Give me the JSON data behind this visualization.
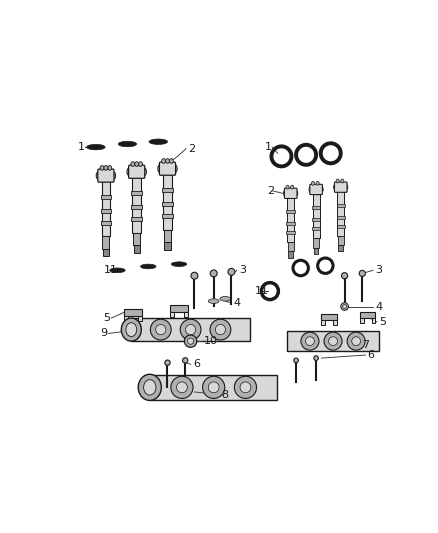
{
  "bg_color": "#ffffff",
  "dark": "#1a1a1a",
  "gray_light": "#d8d8d8",
  "gray_mid": "#b0b0b0",
  "gray_dark": "#888888",
  "label_fs": 8,
  "lc": "#444444"
}
